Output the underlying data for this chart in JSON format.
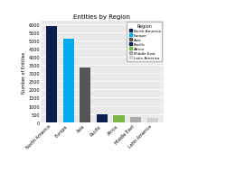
{
  "title": "Entities by Region",
  "categories": [
    "North America",
    "Europe",
    "Asia",
    "Pacific",
    "Africa",
    "Middle East",
    "Latin America"
  ],
  "values": [
    5900,
    5100,
    3350,
    480,
    420,
    300,
    280
  ],
  "colors": [
    "#0d1f4e",
    "#00aaee",
    "#555555",
    "#0d1f4e",
    "#7ab648",
    "#aaaaaa",
    "#d0d0d0"
  ],
  "ylabel": "Number of Entities",
  "ylim": [
    0,
    6200
  ],
  "yticks": [
    0,
    500,
    1000,
    1500,
    2000,
    2500,
    3000,
    3500,
    4000,
    4500,
    5000,
    5500,
    6000
  ],
  "ytick_labels": [
    "0",
    "500",
    "1000",
    "1500",
    "2000",
    "2500",
    "3000",
    "3500",
    "4000",
    "4500",
    "5000",
    "5500",
    "6000"
  ],
  "legend_labels": [
    "North America",
    "Europe",
    "Asia",
    "Pacific",
    "Africa",
    "Middle East",
    "Latin America"
  ],
  "legend_colors": [
    "#0d1f4e",
    "#00aaee",
    "#555555",
    "#0d1f4e",
    "#7ab648",
    "#aaaaaa",
    "#d0d0d0"
  ],
  "legend_title": "Region",
  "bg_color": "#eaeaea"
}
